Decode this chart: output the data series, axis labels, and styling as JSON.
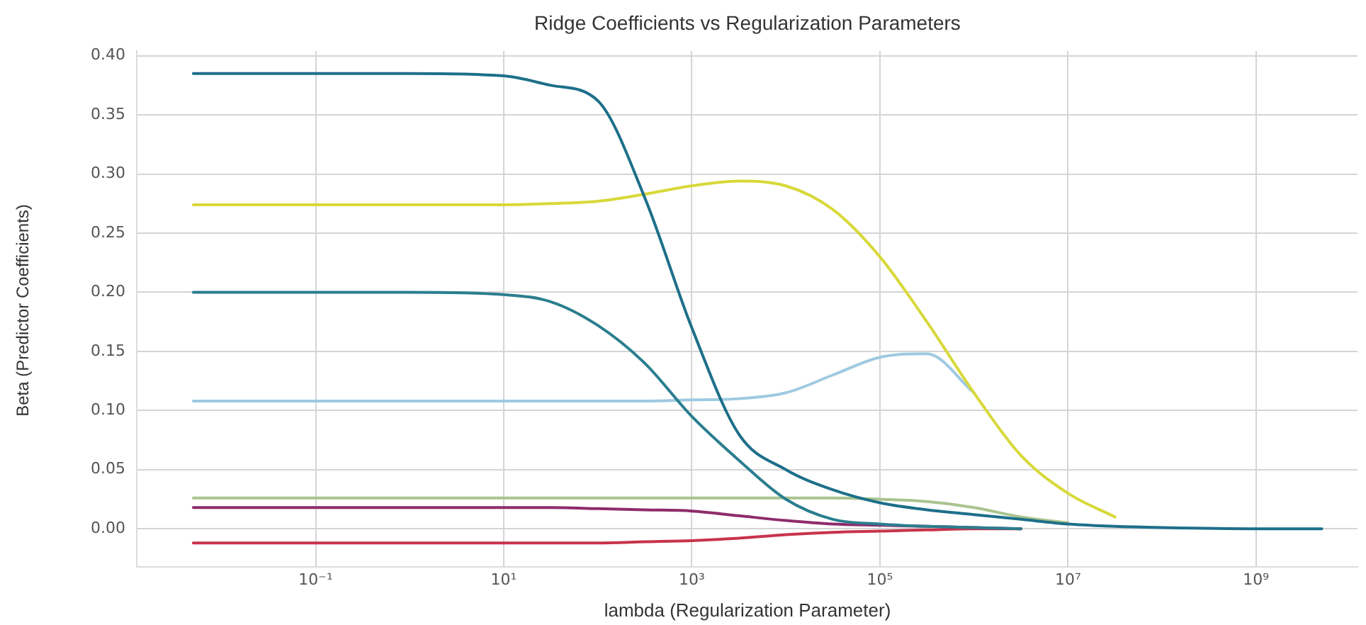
{
  "chart_data": {
    "type": "line",
    "title": "Ridge Coefficients vs Regularization Parameters",
    "xlabel": "lambda (Regularization Parameter)",
    "ylabel": "Beta (Predictor Coefficients)",
    "log": "x",
    "grid": true,
    "legend": false,
    "marker": "none",
    "line_style": "solid",
    "x": [
      0.005,
      0.1,
      1,
      10,
      31.6,
      100,
      316,
      1000,
      3160,
      10000,
      31600,
      100000,
      316000,
      1000000,
      3160000,
      10000000,
      31600000,
      100000000,
      1000000000,
      5000000000
    ],
    "xlim": [
      0.00125,
      12000000000
    ],
    "ylim": [
      -0.032,
      0.404
    ],
    "xticks": [
      {
        "value": 0.1,
        "label": "10⁻¹"
      },
      {
        "value": 10,
        "label": "10¹"
      },
      {
        "value": 1000,
        "label": "10³"
      },
      {
        "value": 100000,
        "label": "10⁵"
      },
      {
        "value": 10000000,
        "label": "10⁷"
      },
      {
        "value": 1000000000,
        "label": "10⁹"
      }
    ],
    "yticks": [
      {
        "value": 0,
        "label": "0.00"
      },
      {
        "value": 0.05,
        "label": "0.05"
      },
      {
        "value": 0.1,
        "label": "0.10"
      },
      {
        "value": 0.15,
        "label": "0.15"
      },
      {
        "value": 0.2,
        "label": "0.20"
      },
      {
        "value": 0.25,
        "label": "0.25"
      },
      {
        "value": 0.3,
        "label": "0.30"
      },
      {
        "value": 0.35,
        "label": "0.35"
      },
      {
        "value": 0.4,
        "label": "0.40"
      }
    ],
    "series": [
      {
        "color": "#1d6f8a",
        "values": [
          0.385,
          0.385,
          0.385,
          0.383,
          0.375,
          0.362,
          0.28,
          0.17,
          0.08,
          0.05,
          0.033,
          0.022,
          0.016,
          0.012,
          0.008,
          0.004,
          0.002,
          0.001,
          0,
          0
        ]
      },
      {
        "color": "#2a7e8e",
        "values": [
          0.2,
          0.2,
          0.2,
          0.198,
          0.192,
          0.172,
          0.14,
          0.095,
          0.058,
          0.025,
          0.008,
          0.004,
          0.002,
          0.001,
          0,
          null,
          null,
          null,
          null,
          null
        ]
      },
      {
        "color": "#d8d83a",
        "values": [
          0.274,
          0.274,
          0.274,
          0.274,
          0.275,
          0.277,
          0.283,
          0.29,
          0.294,
          0.29,
          0.27,
          0.23,
          0.175,
          0.115,
          0.062,
          0.03,
          0.01,
          null,
          null,
          null
        ]
      },
      {
        "color": "#9ecae1",
        "values": [
          0.108,
          0.108,
          0.108,
          0.108,
          0.108,
          0.108,
          0.108,
          0.109,
          0.11,
          0.115,
          0.13,
          0.145,
          0.148,
          0.115,
          null,
          null,
          null,
          null,
          null,
          null
        ]
      },
      {
        "color": "#a9c48e",
        "values": [
          0.026,
          0.026,
          0.026,
          0.026,
          0.026,
          0.026,
          0.026,
          0.026,
          0.026,
          0.026,
          0.026,
          0.025,
          0.023,
          0.018,
          0.01,
          0.005,
          null,
          null,
          null,
          null
        ]
      },
      {
        "color": "#8e2c6c",
        "values": [
          0.018,
          0.018,
          0.018,
          0.018,
          0.018,
          0.017,
          0.016,
          0.015,
          0.011,
          0.007,
          0.004,
          0.003,
          0.002,
          0.001,
          0,
          null,
          null,
          null,
          null,
          null
        ]
      },
      {
        "color": "#c8334b",
        "values": [
          -0.012,
          -0.012,
          -0.012,
          -0.012,
          -0.012,
          -0.012,
          -0.011,
          -0.01,
          -0.008,
          -0.005,
          -0.003,
          -0.002,
          -0.001,
          0,
          0,
          null,
          null,
          null,
          null,
          null
        ]
      }
    ]
  }
}
